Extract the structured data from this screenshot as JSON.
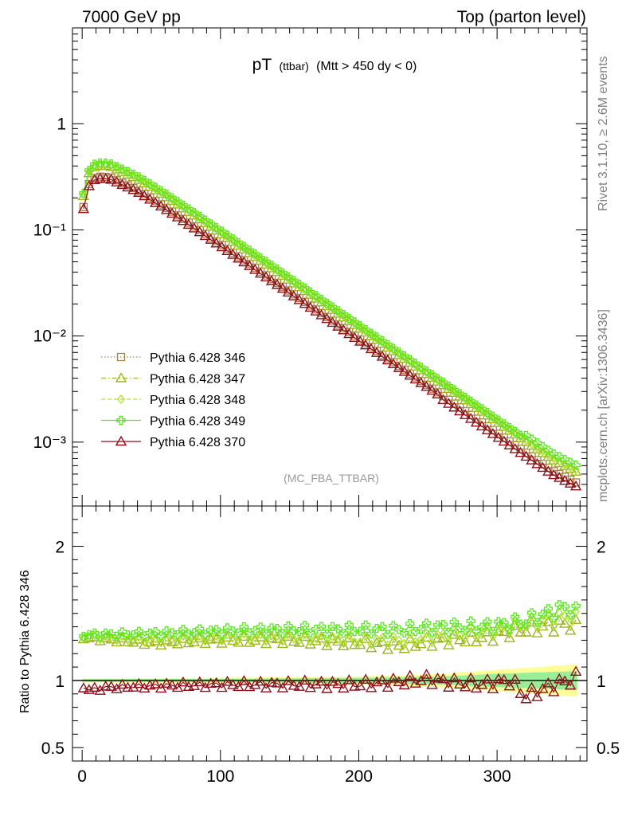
{
  "header": {
    "left": "7000 GeV pp",
    "right": "Top (parton level)"
  },
  "side_text": {
    "rivet": "Rivet 3.1.10, ≥ 2.6M events",
    "mcplots": "mcplots.cern.ch [arXiv:1306.3436]"
  },
  "plot_title": {
    "main": "pT",
    "small": "(ttbar)",
    "rest": "(Mtt > 450 dy < 0)"
  },
  "analysis_label": "(MC_FBA_TTBAR)",
  "ratio_ylabel": "Ratio to Pythia 6.428 346",
  "colors": {
    "s346": "#a87f44",
    "s347": "#9fb51e",
    "s348": "#a9e42a",
    "s349": "#5ae81e",
    "s370": "#900f1a",
    "band_yellow": "#ffff99",
    "band_green": "#99ee99"
  },
  "chart_data": [
    {
      "type": "line",
      "name": "main",
      "xlim": [
        -7,
        365
      ],
      "ylim": [
        0.00025,
        8
      ],
      "yscale": "log",
      "ytick_values": [
        0.001,
        0.01,
        0.1,
        1
      ],
      "ytick_labels": [
        "10⁻³",
        "10⁻²",
        "10⁻¹",
        "1"
      ],
      "legend_position": "lower-left",
      "series": [
        {
          "name": "Pythia 6.428 346",
          "key": "s346",
          "marker": "square",
          "dash": "dotted",
          "scale": 1.0,
          "points": [
            [
              0,
              0.145
            ],
            [
              5,
              0.27
            ],
            [
              10,
              0.318
            ],
            [
              20,
              0.314
            ],
            [
              40,
              0.238
            ],
            [
              60,
              0.164
            ],
            [
              80,
              0.11
            ],
            [
              100,
              0.0732
            ],
            [
              120,
              0.0486
            ],
            [
              140,
              0.0323
            ],
            [
              160,
              0.0214
            ],
            [
              180,
              0.0142
            ],
            [
              200,
              0.00944
            ],
            [
              220,
              0.00628
            ],
            [
              240,
              0.00416
            ],
            [
              260,
              0.00277
            ],
            [
              280,
              0.00184
            ],
            [
              300,
              0.00122
            ],
            [
              320,
              0.00081
            ],
            [
              340,
              0.00054
            ],
            [
              358,
              0.00041
            ]
          ]
        },
        {
          "name": "Pythia 6.428 347",
          "key": "s347",
          "marker": "triangle",
          "dash": "dashdot",
          "scale": 1.27
        },
        {
          "name": "Pythia 6.428 348",
          "key": "s348",
          "marker": "diamond",
          "dash": "dashed",
          "scale": 1.31
        },
        {
          "name": "Pythia 6.428 349",
          "key": "s349",
          "marker": "cross",
          "dash": "solid",
          "scale": 1.35
        },
        {
          "name": "Pythia 6.428 370",
          "key": "s370",
          "marker": "triangle",
          "dash": "solid",
          "scale": 0.96
        }
      ]
    },
    {
      "type": "line",
      "name": "ratio",
      "xlim": [
        -7,
        365
      ],
      "ylim": [
        0.4,
        2.3
      ],
      "ytick_values": [
        0.5,
        1,
        2
      ],
      "ytick_labels": [
        "0.5",
        "1",
        "2"
      ],
      "xtick_values": [
        0,
        100,
        200,
        300
      ],
      "xtick_labels": [
        "0",
        "100",
        "200",
        "300"
      ],
      "reference_line": 1,
      "band_yellow_halfwidth": [
        [
          0,
          0.015
        ],
        [
          100,
          0.02
        ],
        [
          200,
          0.03
        ],
        [
          260,
          0.05
        ],
        [
          300,
          0.08
        ],
        [
          358,
          0.12
        ]
      ],
      "band_green_halfwidth": [
        [
          0,
          0.01
        ],
        [
          100,
          0.012
        ],
        [
          200,
          0.02
        ],
        [
          260,
          0.03
        ],
        [
          300,
          0.05
        ],
        [
          358,
          0.07
        ]
      ],
      "series": [
        {
          "name": "Pythia 6.428 347",
          "key": "s347",
          "points": [
            [
              0,
              1.32
            ],
            [
              50,
              1.28
            ],
            [
              100,
              1.3
            ],
            [
              150,
              1.3
            ],
            [
              200,
              1.28
            ],
            [
              230,
              1.26
            ],
            [
              260,
              1.3
            ],
            [
              290,
              1.32
            ],
            [
              320,
              1.38
            ],
            [
              350,
              1.42
            ],
            [
              358,
              1.4
            ]
          ]
        },
        {
          "name": "Pythia 6.428 348",
          "key": "s348",
          "points": [
            [
              0,
              1.33
            ],
            [
              50,
              1.3
            ],
            [
              100,
              1.32
            ],
            [
              150,
              1.32
            ],
            [
              200,
              1.3
            ],
            [
              230,
              1.3
            ],
            [
              260,
              1.33
            ],
            [
              290,
              1.36
            ],
            [
              320,
              1.42
            ],
            [
              350,
              1.48
            ],
            [
              358,
              1.46
            ]
          ]
        },
        {
          "name": "Pythia 6.428 349",
          "key": "s349",
          "points": [
            [
              0,
              1.34
            ],
            [
              50,
              1.35
            ],
            [
              100,
              1.37
            ],
            [
              150,
              1.38
            ],
            [
              200,
              1.38
            ],
            [
              230,
              1.38
            ],
            [
              260,
              1.4
            ],
            [
              290,
              1.4
            ],
            [
              320,
              1.44
            ],
            [
              350,
              1.55
            ],
            [
              358,
              1.5
            ]
          ]
        },
        {
          "name": "Pythia 6.428 370",
          "key": "s370",
          "points": [
            [
              0,
              0.96
            ],
            [
              5,
              0.93
            ],
            [
              20,
              0.95
            ],
            [
              50,
              0.96
            ],
            [
              100,
              0.97
            ],
            [
              150,
              0.97
            ],
            [
              200,
              0.97
            ],
            [
              230,
              0.99
            ],
            [
              250,
              1.01
            ],
            [
              270,
              0.98
            ],
            [
              290,
              0.97
            ],
            [
              310,
              1.0
            ],
            [
              320,
              0.88
            ],
            [
              340,
              0.96
            ],
            [
              358,
              1.02
            ]
          ]
        }
      ]
    }
  ]
}
